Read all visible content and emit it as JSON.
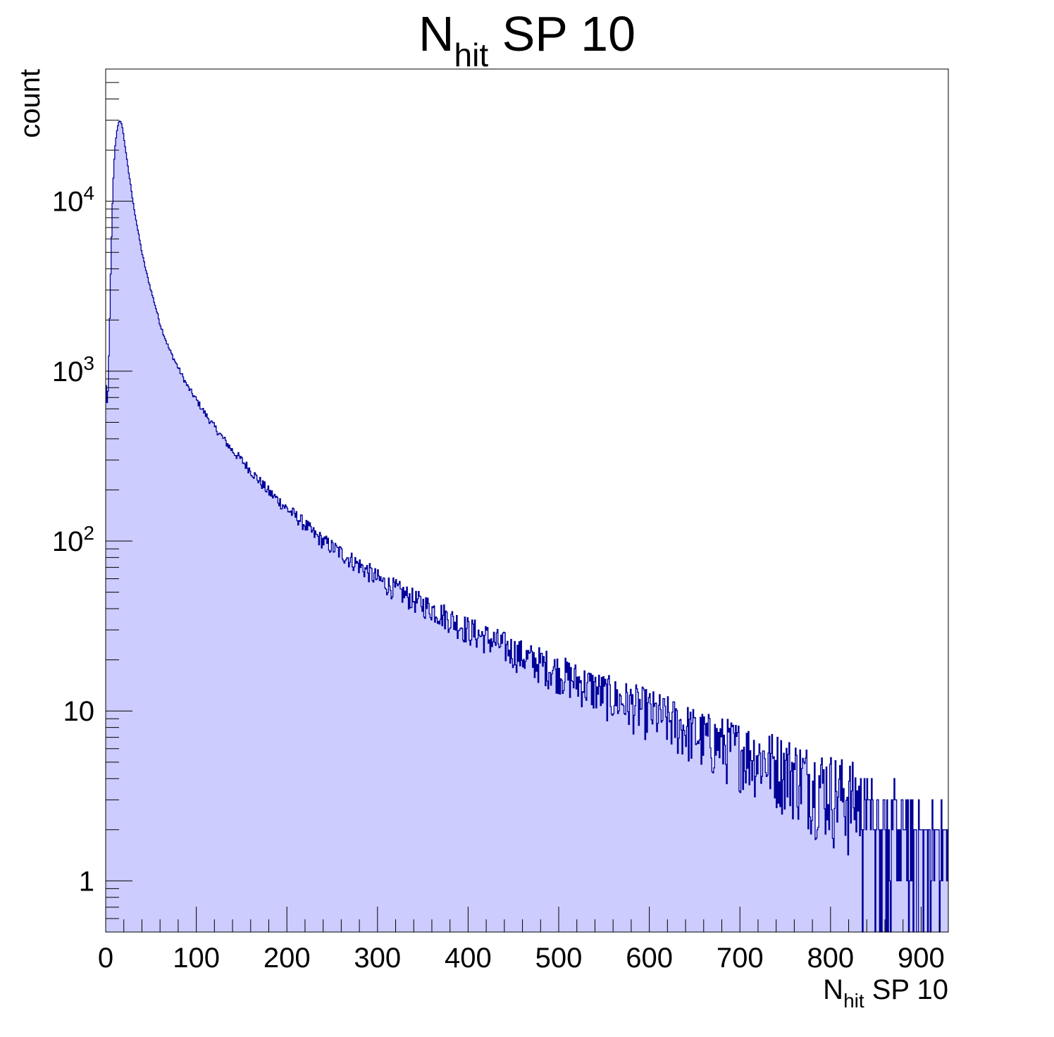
{
  "chart_data": {
    "type": "histogram",
    "title": {
      "main": "N",
      "sub": "hit",
      "rest": " SP 10"
    },
    "xlabel": {
      "main": "N",
      "sub": "hit",
      "rest": " SP 10"
    },
    "ylabel": "count",
    "xlim": [
      0,
      930
    ],
    "ylim": [
      0.5,
      60000
    ],
    "yscale": "log",
    "x_ticks": [
      "0",
      "100",
      "200",
      "300",
      "400",
      "500",
      "600",
      "700",
      "800",
      "900"
    ],
    "y_ticks": [
      {
        "value": 1,
        "label": "1",
        "exp": ""
      },
      {
        "value": 10,
        "label": "10",
        "exp": ""
      },
      {
        "value": 100,
        "label": "10",
        "exp": "2"
      },
      {
        "value": 1000,
        "label": "10",
        "exp": "3"
      },
      {
        "value": 10000,
        "label": "10",
        "exp": "4"
      }
    ],
    "bin_width": 1,
    "fill_color": "#ccccff",
    "line_color": "#000099",
    "series": [
      {
        "x": [
          0,
          2,
          4,
          6,
          8,
          10,
          12,
          14,
          16,
          18,
          20,
          22,
          24,
          26,
          28,
          30,
          35,
          40,
          45,
          50,
          55,
          60,
          65,
          70,
          80,
          90,
          100,
          110,
          120,
          130,
          140,
          150,
          160,
          170,
          180,
          190,
          200,
          210,
          220,
          230,
          240,
          250,
          260,
          270,
          280,
          290,
          300,
          320,
          340,
          360,
          380,
          400,
          420,
          440,
          460,
          480,
          500,
          520,
          540,
          560,
          580,
          600,
          620,
          640,
          660,
          680,
          700,
          720,
          740,
          760,
          780,
          800,
          820,
          840,
          860,
          880,
          900,
          920,
          929
        ],
        "values": [
          900,
          600,
          1500,
          5000,
          12000,
          20000,
          25000,
          29000,
          30000,
          28000,
          24000,
          20000,
          17000,
          14000,
          12000,
          10000,
          7000,
          5000,
          3800,
          3000,
          2400,
          1900,
          1600,
          1350,
          1050,
          820,
          680,
          560,
          470,
          400,
          340,
          300,
          260,
          225,
          195,
          175,
          155,
          140,
          125,
          110,
          100,
          92,
          85,
          78,
          72,
          66,
          60,
          52,
          45,
          40,
          35,
          30,
          27,
          24,
          21,
          19,
          17,
          15,
          13.5,
          12,
          11,
          10,
          9,
          8,
          7,
          6.5,
          6,
          5.5,
          5,
          4.5,
          4,
          3.6,
          3.2,
          2.9,
          2.6,
          2.3,
          2,
          1.7,
          1.5
        ]
      }
    ]
  }
}
